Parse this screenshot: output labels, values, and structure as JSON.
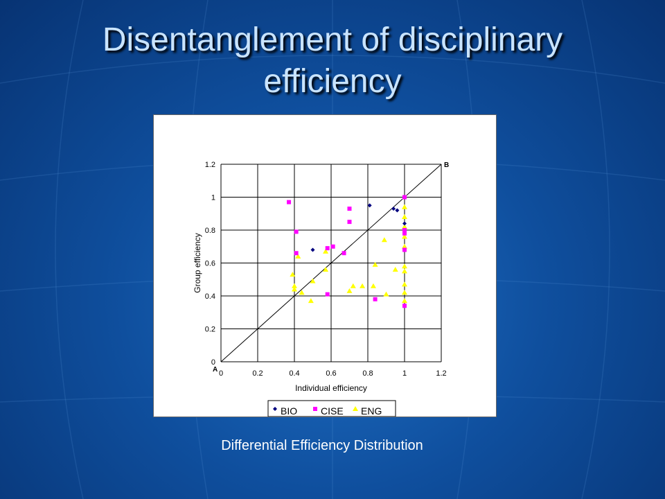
{
  "slide": {
    "title_line1": "Disentanglement of disciplinary",
    "title_line2": "efficiency",
    "caption": "Differential Efficiency Distribution"
  },
  "colors": {
    "background": "#0f4f9e",
    "title": "#c9e4ff",
    "BIO": "#00007f",
    "CISE": "#ff00ff",
    "ENG": "#ffff00"
  },
  "chart_data": {
    "type": "scatter",
    "title": "",
    "xlabel": "Individual efficiency",
    "ylabel": "Group efficiency",
    "xlim": [
      0,
      1.2
    ],
    "ylim": [
      0,
      1.2
    ],
    "xticks": [
      "0",
      "0.2",
      "0.4",
      "0.6",
      "0.8",
      "1",
      "1.2"
    ],
    "yticks": [
      "0",
      "0.2",
      "0.4",
      "0.6",
      "0.8",
      "1",
      "1.2"
    ],
    "grid": true,
    "diagonal_label_start": "A",
    "diagonal_label_end": "B",
    "legend_placement": "bottom",
    "series": [
      {
        "name": "BIO",
        "marker": "diamond",
        "points": [
          [
            0.5,
            0.68
          ],
          [
            0.81,
            0.95
          ],
          [
            0.94,
            0.93
          ],
          [
            0.96,
            0.92
          ],
          [
            1.0,
            0.84
          ]
        ]
      },
      {
        "name": "CISE",
        "marker": "square",
        "points": [
          [
            0.37,
            0.97
          ],
          [
            0.41,
            0.79
          ],
          [
            0.41,
            0.66
          ],
          [
            0.58,
            0.69
          ],
          [
            0.58,
            0.41
          ],
          [
            0.61,
            0.7
          ],
          [
            0.67,
            0.66
          ],
          [
            0.7,
            0.93
          ],
          [
            0.7,
            0.85
          ],
          [
            0.84,
            0.38
          ],
          [
            1.0,
            1.0
          ],
          [
            1.0,
            0.8
          ],
          [
            1.0,
            0.78
          ],
          [
            1.0,
            0.68
          ],
          [
            1.0,
            0.34
          ]
        ]
      },
      {
        "name": "ENG",
        "marker": "triangle",
        "points": [
          [
            0.39,
            0.53
          ],
          [
            0.4,
            0.46
          ],
          [
            0.4,
            0.44
          ],
          [
            0.42,
            0.64
          ],
          [
            0.44,
            0.42
          ],
          [
            0.49,
            0.37
          ],
          [
            0.5,
            0.49
          ],
          [
            0.57,
            0.56
          ],
          [
            0.57,
            0.67
          ],
          [
            0.7,
            0.43
          ],
          [
            0.72,
            0.46
          ],
          [
            0.77,
            0.46
          ],
          [
            0.83,
            0.46
          ],
          [
            0.84,
            0.59
          ],
          [
            0.89,
            0.74
          ],
          [
            0.9,
            0.41
          ],
          [
            0.95,
            0.56
          ],
          [
            1.0,
            0.94
          ],
          [
            1.0,
            0.88
          ],
          [
            1.0,
            0.82
          ],
          [
            1.0,
            0.76
          ],
          [
            1.0,
            0.7
          ],
          [
            1.0,
            0.58
          ],
          [
            1.0,
            0.55
          ],
          [
            1.0,
            0.47
          ],
          [
            1.0,
            0.42
          ],
          [
            1.0,
            0.37
          ]
        ]
      }
    ]
  }
}
